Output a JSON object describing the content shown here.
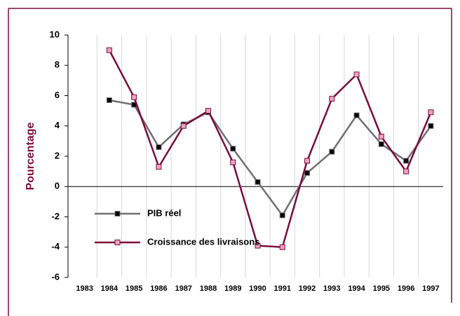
{
  "chart_data": {
    "type": "line",
    "y_label": "Pourcentage",
    "categories": [
      "1983",
      "1984",
      "1985",
      "1986",
      "1987",
      "1988",
      "1989",
      "1990",
      "1991",
      "1992",
      "1993",
      "1994",
      "1995",
      "1996",
      "1997"
    ],
    "series": [
      {
        "name": "PIB réel",
        "color": "#707070",
        "marker_color": "#000000",
        "values": [
          null,
          5.7,
          5.4,
          2.6,
          4.1,
          4.9,
          2.5,
          0.3,
          -1.9,
          0.9,
          2.3,
          4.7,
          2.8,
          1.7,
          4.0
        ]
      },
      {
        "name": "Croissance des livraisons",
        "color": "#7b0c3c",
        "marker_color": "#f0a0c0",
        "values": [
          null,
          9.0,
          5.9,
          1.3,
          4.0,
          5.0,
          1.6,
          -3.9,
          -4.0,
          1.7,
          5.8,
          7.4,
          3.3,
          1.0,
          4.9
        ]
      }
    ],
    "ylim": [
      -6,
      10
    ],
    "yticks": [
      -6,
      -4,
      -2,
      0,
      2,
      4,
      6,
      8,
      10
    ],
    "grid": true
  }
}
